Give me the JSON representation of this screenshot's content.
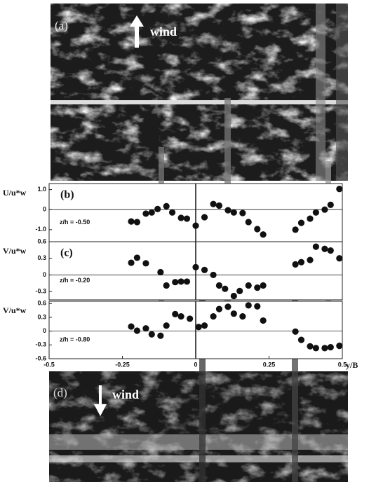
{
  "photos": [
    {
      "label": "(a)",
      "annotation": "wind"
    },
    {
      "label": "(d)",
      "annotation": "wind"
    }
  ],
  "chart_data": [
    {
      "type": "scatter",
      "panel_label": "(b)",
      "ylabel": "U/u*w",
      "annotation": "z/h = -0.50",
      "color": "#111",
      "xlim": [
        -0.5,
        0.5
      ],
      "ylim": [
        -1.6,
        1.3
      ],
      "yticks": [
        {
          "value": 1,
          "label": "1.0"
        },
        0,
        {
          "value": -1,
          "label": "-1.0"
        }
      ],
      "x": [
        -0.22,
        -0.2,
        -0.17,
        -0.15,
        -0.13,
        -0.1,
        -0.08,
        -0.05,
        -0.03,
        0.0,
        0.03,
        0.06,
        0.08,
        0.11,
        0.13,
        0.16,
        0.18,
        0.21,
        0.23,
        0.34,
        0.36,
        0.39,
        0.41,
        0.44,
        0.46,
        0.49
      ],
      "values": [
        -0.59,
        -0.62,
        -0.2,
        -0.14,
        0.03,
        0.17,
        -0.14,
        -0.41,
        -0.45,
        -0.8,
        -0.38,
        0.28,
        0.2,
        -0.03,
        -0.14,
        -0.17,
        -0.62,
        -0.97,
        -1.24,
        -1.0,
        -0.66,
        -0.45,
        -0.14,
        0,
        0.24,
        1.03
      ]
    },
    {
      "type": "scatter",
      "panel_label": "(c)",
      "ylabel": "V/u*w",
      "annotation": "z/h = -0.20",
      "color": "#111",
      "xlim": [
        -0.5,
        0.5
      ],
      "ylim": [
        -0.45,
        0.6
      ],
      "yticks": [
        0.6,
        0.3,
        0,
        -0.3
      ],
      "x": [
        -0.22,
        -0.2,
        -0.17,
        -0.12,
        -0.1,
        -0.07,
        -0.05,
        -0.03,
        0.0,
        0.03,
        0.06,
        0.08,
        0.1,
        0.13,
        0.15,
        0.18,
        0.21,
        0.23,
        0.34,
        0.36,
        0.39,
        0.41,
        0.44,
        0.46,
        0.49
      ],
      "values": [
        0.22,
        0.31,
        0.21,
        0.05,
        -0.19,
        -0.13,
        -0.12,
        -0.12,
        0.14,
        0.09,
        0,
        -0.19,
        -0.25,
        -0.38,
        -0.29,
        -0.19,
        -0.23,
        -0.19,
        0.19,
        0.23,
        0.27,
        0.51,
        0.47,
        0.44,
        0.3
      ]
    },
    {
      "type": "scatter",
      "ylabel": "V/u*w",
      "annotation": "z/h = -0.80",
      "color": "#111",
      "xlim": [
        -0.5,
        0.5
      ],
      "ylim": [
        -0.6,
        0.65
      ],
      "yticks": [
        0.6,
        0.3,
        0,
        -0.3,
        -0.6
      ],
      "xticks": [
        -0.5,
        -0.25,
        0,
        0.25,
        0.5
      ],
      "xlabel": "y/B",
      "x": [
        -0.22,
        -0.2,
        -0.17,
        -0.15,
        -0.12,
        -0.1,
        -0.07,
        -0.05,
        -0.02,
        0.01,
        0.03,
        0.06,
        0.08,
        0.11,
        0.13,
        0.16,
        0.18,
        0.21,
        0.23,
        0.34,
        0.36,
        0.39,
        0.41,
        0.44,
        0.46,
        0.49
      ],
      "values": [
        0.1,
        0.01,
        0.06,
        -0.07,
        -0.1,
        0.12,
        0.37,
        0.32,
        0.27,
        0.09,
        0.12,
        0.32,
        0.48,
        0.53,
        0.38,
        0.32,
        0.56,
        0.54,
        0.23,
        -0.01,
        -0.19,
        -0.33,
        -0.37,
        -0.37,
        -0.35,
        -0.32
      ]
    }
  ]
}
